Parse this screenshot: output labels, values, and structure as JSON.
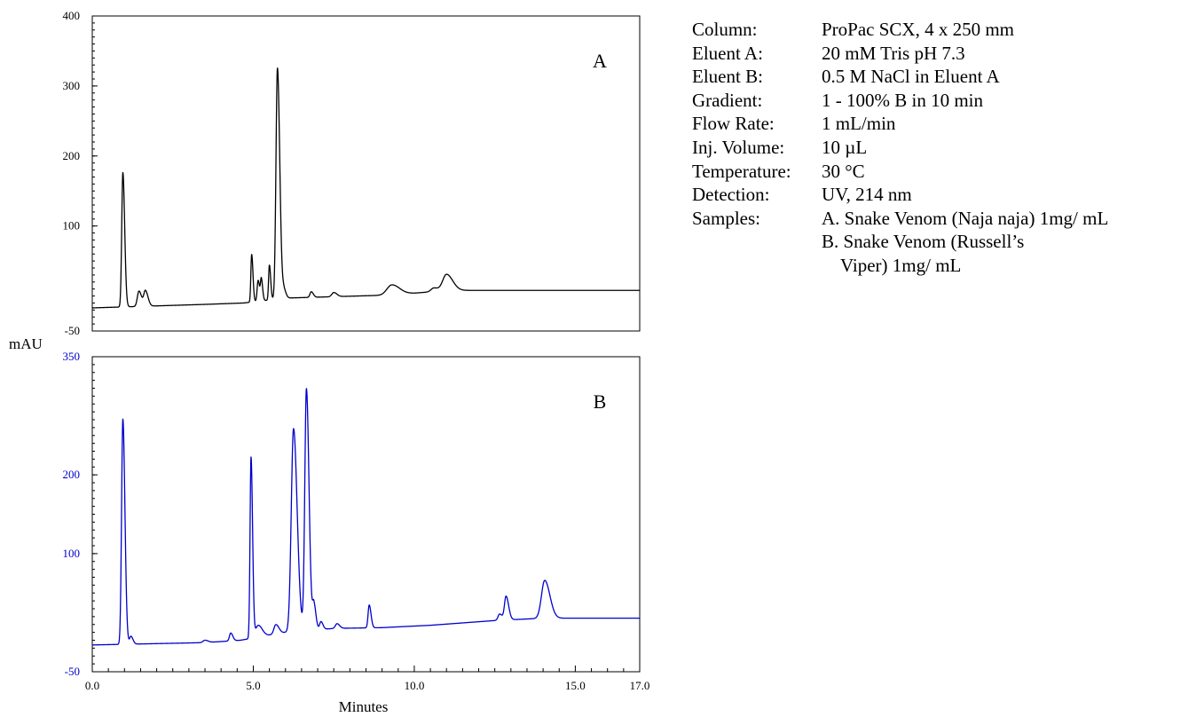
{
  "chart_data": [
    {
      "type": "line",
      "panel_label": "A",
      "ylim": [
        -50,
        400
      ],
      "xlim": [
        0,
        17
      ],
      "y_ticks": [
        "400",
        "300",
        "200",
        "100",
        "-50"
      ],
      "y_tick_values": [
        400,
        300,
        200,
        100,
        -50
      ],
      "color": "#000000",
      "series": [
        {
          "baseline": -17,
          "drift": [
            [
              0,
              -17
            ],
            [
              3.5,
              -12
            ],
            [
              4.7,
              -10
            ],
            [
              6,
              -3
            ],
            [
              9,
              1
            ],
            [
              10,
              4
            ],
            [
              11,
              8
            ],
            [
              17,
              8
            ]
          ],
          "peaks": [
            [
              0.95,
              192,
              0.035
            ],
            [
              1.45,
              22,
              0.05
            ],
            [
              1.65,
              22,
              0.05
            ],
            [
              4.95,
              68,
              0.025
            ],
            [
              5.15,
              30,
              0.03
            ],
            [
              5.25,
              30,
              0.025
            ],
            [
              5.5,
              50,
              0.025
            ],
            [
              5.75,
              330,
              0.045
            ],
            [
              5.95,
              12,
              0.04
            ],
            [
              6.8,
              8,
              0.04
            ],
            [
              7.5,
              6,
              0.06
            ],
            [
              9.3,
              14,
              0.15
            ],
            [
              10.6,
              5,
              0.08
            ],
            [
              11.0,
              23,
              0.12
            ]
          ]
        }
      ]
    },
    {
      "type": "line",
      "panel_label": "B",
      "ylim": [
        -50,
        350
      ],
      "xlim": [
        0,
        17
      ],
      "y_ticks": [
        "350",
        "200",
        "100",
        "-50"
      ],
      "y_tick_values": [
        350,
        200,
        100,
        -50
      ],
      "x_ticks": [
        "0.0",
        "5.0",
        "10.0",
        "15.0",
        "17.0"
      ],
      "x_tick_values": [
        0,
        5,
        10,
        15,
        17
      ],
      "xlabel": "Minutes",
      "color": "#0000cc",
      "series": [
        {
          "baseline": -16,
          "drift": [
            [
              0,
              -16
            ],
            [
              3.5,
              -13
            ],
            [
              4.6,
              -10
            ],
            [
              6,
              0
            ],
            [
              7.5,
              5
            ],
            [
              9,
              6
            ],
            [
              10.5,
              9
            ],
            [
              12.5,
              15
            ],
            [
              14,
              18
            ],
            [
              17,
              18
            ]
          ],
          "peaks": [
            [
              0.95,
              286,
              0.04
            ],
            [
              1.2,
              10,
              0.04
            ],
            [
              3.5,
              3,
              0.06
            ],
            [
              4.3,
              10,
              0.04
            ],
            [
              4.93,
              230,
              0.03
            ],
            [
              5.15,
              15,
              0.08
            ],
            [
              5.7,
              12,
              0.06
            ],
            [
              6.25,
              258,
              0.07
            ],
            [
              6.65,
              307,
              0.05
            ],
            [
              6.88,
              33,
              0.04
            ],
            [
              7.1,
              10,
              0.04
            ],
            [
              7.6,
              6,
              0.05
            ],
            [
              8.6,
              29,
              0.035
            ],
            [
              12.65,
              8,
              0.05
            ],
            [
              12.85,
              30,
              0.05
            ],
            [
              14.05,
              48,
              0.1
            ]
          ]
        }
      ]
    }
  ],
  "axis_unit_label": "mAU",
  "conditions": {
    "column_label": "Column:",
    "column_value": "ProPac SCX, 4 x 250 mm",
    "eluent_a_label": "Eluent A:",
    "eluent_a_value": "20 mM Tris pH 7.3",
    "eluent_b_label": "Eluent B:",
    "eluent_b_value": "0.5 M NaCl in Eluent A",
    "gradient_label": "Gradient:",
    "gradient_value": "1 - 100% B in 10 min",
    "flow_rate_label": "Flow Rate:",
    "flow_rate_value": "1 mL/min",
    "inj_volume_label": "Inj. Volume:",
    "inj_volume_value": "10 µL",
    "temperature_label": "Temperature:",
    "temperature_value": "30 °C",
    "detection_label": "Detection:",
    "detection_value": "UV, 214 nm",
    "samples_label": "Samples:",
    "sample_a": "A. Snake Venom (Naja naja) 1mg/ mL",
    "sample_b_line1": "B. Snake Venom (Russell’s",
    "sample_b_line2": "Viper) 1mg/ mL"
  }
}
